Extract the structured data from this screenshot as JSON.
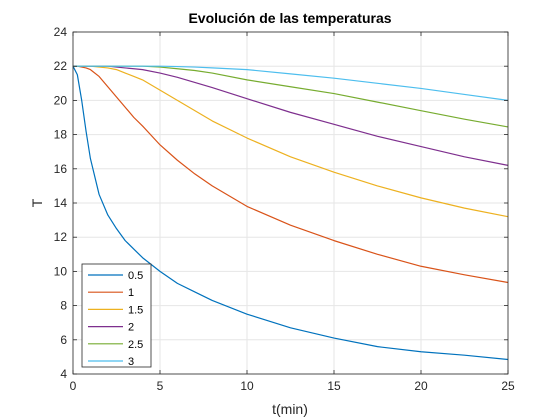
{
  "chart_data": {
    "type": "line",
    "title": "Evolución de las temperaturas",
    "xlabel": "t(min)",
    "ylabel": "T",
    "xlim": [
      0,
      25
    ],
    "ylim": [
      4,
      24
    ],
    "xticks": [
      0,
      5,
      10,
      15,
      20,
      25
    ],
    "yticks": [
      4,
      6,
      8,
      10,
      12,
      14,
      16,
      18,
      20,
      22,
      24
    ],
    "grid": true,
    "legend_position": "bottom-left",
    "x": [
      0,
      0.25,
      0.5,
      0.75,
      1,
      1.5,
      2,
      2.5,
      3,
      3.5,
      4,
      5,
      6,
      7,
      8,
      10,
      12.5,
      15,
      17.5,
      20,
      22.5,
      25
    ],
    "series": [
      {
        "name": "0.5",
        "color": "#0072BD",
        "values": [
          22,
          21.5,
          20,
          18.2,
          16.6,
          14.5,
          13.3,
          12.5,
          11.8,
          11.3,
          10.8,
          10.0,
          9.3,
          8.8,
          8.3,
          7.5,
          6.7,
          6.1,
          5.6,
          5.3,
          5.1,
          4.85
        ]
      },
      {
        "name": "1",
        "color": "#D95319",
        "values": [
          22,
          22,
          21.95,
          21.9,
          21.8,
          21.4,
          20.8,
          20.2,
          19.6,
          19.0,
          18.5,
          17.4,
          16.5,
          15.7,
          15.0,
          13.8,
          12.7,
          11.8,
          11.0,
          10.3,
          9.8,
          9.35
        ]
      },
      {
        "name": "1.5",
        "color": "#EDB120",
        "values": [
          22,
          22,
          22,
          22,
          22,
          21.95,
          21.9,
          21.8,
          21.6,
          21.4,
          21.2,
          20.6,
          20.0,
          19.4,
          18.8,
          17.8,
          16.7,
          15.8,
          15.0,
          14.3,
          13.7,
          13.2
        ]
      },
      {
        "name": "2",
        "color": "#7E2F8E",
        "values": [
          22,
          22,
          22,
          22,
          22,
          22,
          22,
          21.95,
          21.9,
          21.85,
          21.8,
          21.6,
          21.35,
          21.05,
          20.75,
          20.1,
          19.3,
          18.6,
          17.9,
          17.3,
          16.7,
          16.2
        ]
      },
      {
        "name": "2.5",
        "color": "#77AC30",
        "values": [
          22,
          22,
          22,
          22,
          22,
          22,
          22,
          22,
          22,
          22,
          22,
          21.95,
          21.85,
          21.75,
          21.6,
          21.2,
          20.8,
          20.4,
          19.9,
          19.4,
          18.9,
          18.45
        ]
      },
      {
        "name": "3",
        "color": "#4DBEEE",
        "values": [
          22,
          22,
          22,
          22,
          22,
          22,
          22,
          22,
          22,
          22,
          22,
          22,
          21.98,
          21.95,
          21.9,
          21.8,
          21.55,
          21.3,
          21.0,
          20.7,
          20.35,
          20.0
        ]
      }
    ]
  }
}
